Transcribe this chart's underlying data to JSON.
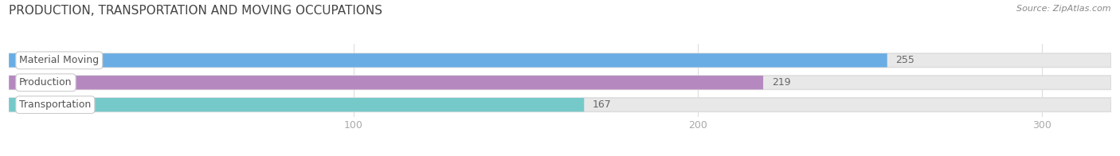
{
  "title": "PRODUCTION, TRANSPORTATION AND MOVING OCCUPATIONS",
  "source": "Source: ZipAtlas.com",
  "categories": [
    "Material Moving",
    "Production",
    "Transportation"
  ],
  "values": [
    255,
    219,
    167
  ],
  "bar_colors": [
    "#6aade4",
    "#b589c0",
    "#76c9c9"
  ],
  "bar_bg_color": "#e8e8e8",
  "xlim": [
    0,
    320
  ],
  "xticks": [
    100,
    200,
    300
  ],
  "label_fontsize": 9,
  "value_fontsize": 9,
  "title_fontsize": 11,
  "title_color": "#444444",
  "source_color": "#888888",
  "tick_color": "#aaaaaa",
  "value_color": "#666666",
  "label_color": "#555555"
}
